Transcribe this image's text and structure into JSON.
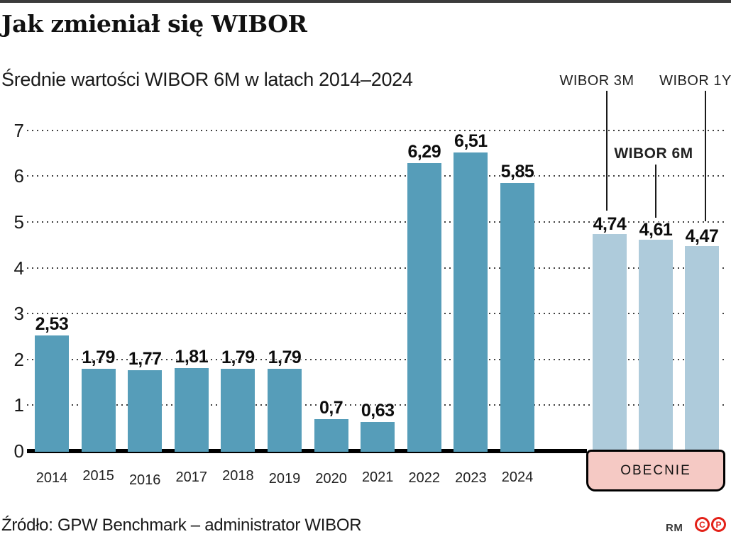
{
  "page": {
    "title": "Jak zmieniał się WIBOR",
    "subtitle": "Średnie wartości WIBOR 6M w latach 2014–2024",
    "source": "Źródło: GPW Benchmark – administrator WIBOR"
  },
  "footer": {
    "credit": "RM",
    "icons": [
      "C",
      "P"
    ]
  },
  "colors": {
    "bar_main": "#569db9",
    "bar_current": "#aecbdb",
    "obecnie_fill": "#f5c9c4",
    "accent_red": "#e32118",
    "top_rule": "#3c3c3c"
  },
  "chart_data": {
    "type": "bar",
    "title": "Jak zmieniał się WIBOR",
    "subtitle": "Średnie wartości WIBOR 6M w latach 2014–2024",
    "categories": [
      "2014",
      "2015",
      "2016",
      "2017",
      "2018",
      "2019",
      "2020",
      "2021",
      "2022",
      "2023",
      "2024"
    ],
    "values": [
      2.53,
      1.79,
      1.77,
      1.81,
      1.79,
      1.79,
      0.7,
      0.63,
      6.29,
      6.51,
      5.85
    ],
    "value_labels": [
      "2,53",
      "1,79",
      "1,77",
      "1,81",
      "1,79",
      "1,79",
      "0,7",
      "0,63",
      "6,29",
      "6,51",
      "5,85"
    ],
    "ylabel": "",
    "xlabel": "",
    "ylim": [
      0,
      7
    ],
    "yticks": [
      0,
      1,
      2,
      3,
      4,
      5,
      6,
      7
    ],
    "grid": "dotted-horizontal",
    "legend": "none",
    "current": {
      "box_label": "OBECNIE",
      "series": [
        {
          "name": "WIBOR 3M",
          "value": 4.74,
          "value_label": "4,74"
        },
        {
          "name": "WIBOR 6M",
          "value": 4.61,
          "value_label": "4,61"
        },
        {
          "name": "WIBOR 1Y",
          "value": 4.47,
          "value_label": "4,47"
        }
      ]
    },
    "source": "Źródło: GPW Benchmark – administrator WIBOR"
  }
}
